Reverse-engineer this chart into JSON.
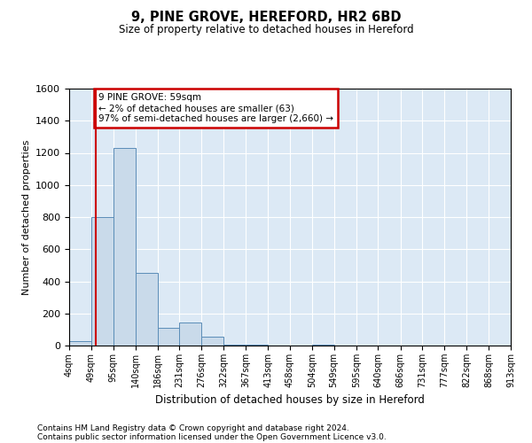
{
  "title_line1": "9, PINE GROVE, HEREFORD, HR2 6BD",
  "title_line2": "Size of property relative to detached houses in Hereford",
  "xlabel": "Distribution of detached houses by size in Hereford",
  "ylabel": "Number of detached properties",
  "footnote_line1": "Contains HM Land Registry data © Crown copyright and database right 2024.",
  "footnote_line2": "Contains public sector information licensed under the Open Government Licence v3.0.",
  "annotation_title": "9 PINE GROVE: 59sqm",
  "annotation_line1": "← 2% of detached houses are smaller (63)",
  "annotation_line2": "97% of semi-detached houses are larger (2,660) →",
  "property_size_sqm": 59,
  "bin_edges": [
    4,
    49,
    95,
    140,
    186,
    231,
    276,
    322,
    367,
    413,
    458,
    504,
    549,
    595,
    640,
    686,
    731,
    777,
    822,
    868,
    913
  ],
  "bar_heights": [
    30,
    800,
    1230,
    450,
    110,
    145,
    55,
    5,
    5,
    0,
    0,
    5,
    0,
    0,
    0,
    0,
    0,
    0,
    0,
    0
  ],
  "bar_color": "#c9daea",
  "bar_edge_color": "#5b8db8",
  "marker_line_color": "#cc0000",
  "annotation_box_edge_color": "#cc0000",
  "background_color": "#dce9f5",
  "ylim": [
    0,
    1600
  ],
  "yticks": [
    0,
    200,
    400,
    600,
    800,
    1000,
    1200,
    1400,
    1600
  ]
}
